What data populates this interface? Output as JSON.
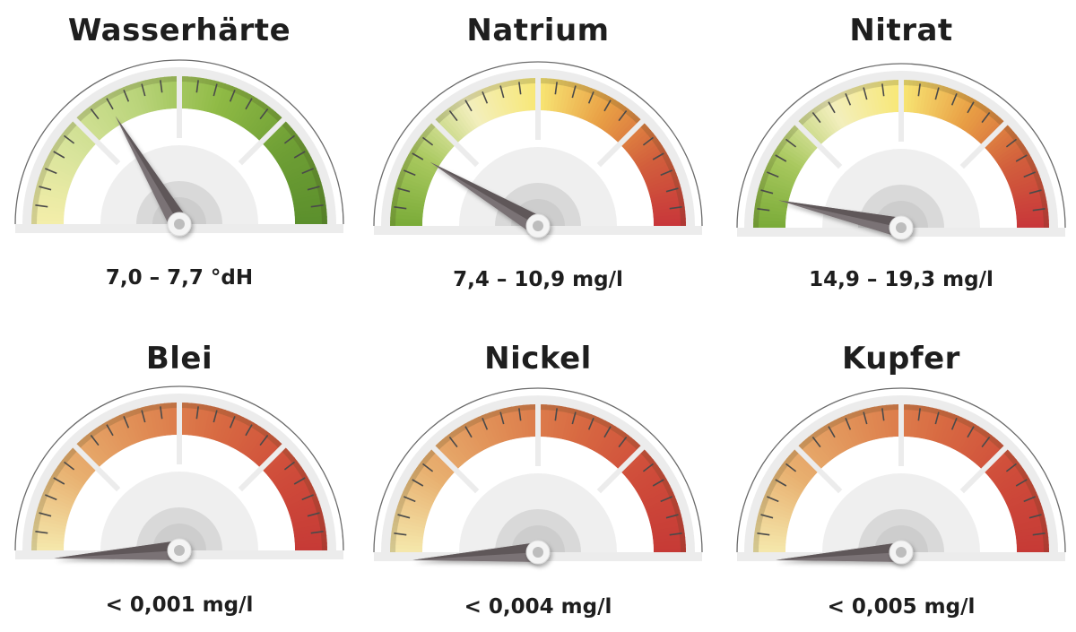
{
  "chart_data": [
    {
      "type": "gauge",
      "title": "Wasserhärte",
      "value_label": "7,0 – 7,7 °dH",
      "needle_fraction": 0.33,
      "colors": [
        "#f4eeaa",
        "#d6e39a",
        "#b9d47a",
        "#8fba45",
        "#6f9f35",
        "#5b8f2c"
      ]
    },
    {
      "type": "gauge",
      "title": "Natrium",
      "value_label": "7,4 – 10,9 mg/l",
      "needle_fraction": 0.17,
      "colors": [
        "#7aab38",
        "#a8c85e",
        "#f3efbd",
        "#f8e775",
        "#e9a045",
        "#d25f3c",
        "#c8363a"
      ]
    },
    {
      "type": "gauge",
      "title": "Nitrat",
      "value_label": "14,9 – 19,3 mg/l",
      "needle_fraction": 0.07,
      "colors": [
        "#7aab38",
        "#a8c85e",
        "#f3efbd",
        "#f8e775",
        "#e9a045",
        "#d25f3c",
        "#c8363a"
      ]
    },
    {
      "type": "gauge",
      "title": "Blei",
      "value_label": "< 0,001 mg/l",
      "needle_fraction": -0.02,
      "colors": [
        "#f5e8ac",
        "#e8b070",
        "#e08d55",
        "#d86a42",
        "#cf4c3a",
        "#c63a36"
      ]
    },
    {
      "type": "gauge",
      "title": "Nickel",
      "value_label": "< 0,004 mg/l",
      "needle_fraction": -0.02,
      "colors": [
        "#f5e8ac",
        "#e8b070",
        "#e08d55",
        "#d86a42",
        "#cf4c3a",
        "#c63a36"
      ]
    },
    {
      "type": "gauge",
      "title": "Kupfer",
      "value_label": "< 0,005 mg/l",
      "needle_fraction": -0.02,
      "colors": [
        "#f5e8ac",
        "#e8b070",
        "#e08d55",
        "#d86a42",
        "#cf4c3a",
        "#c63a36"
      ]
    }
  ]
}
